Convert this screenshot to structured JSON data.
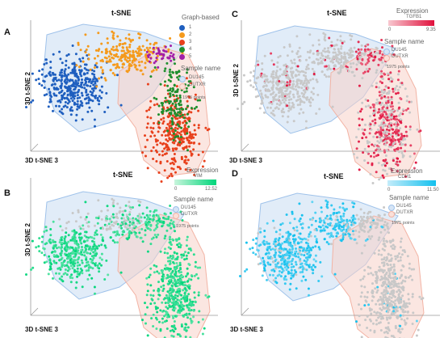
{
  "chart_data": [
    {
      "panel": "A",
      "type": "scatter",
      "title": "t-SNE",
      "xlabel": "3D t-SNE 3",
      "ylabel": "3D t-SNE 2",
      "color_by": "Graph-based",
      "legend": [
        {
          "label": "1",
          "color": "#1f5fbf"
        },
        {
          "label": "2",
          "color": "#f59a1c"
        },
        {
          "label": "3",
          "color": "#e8401c"
        },
        {
          "label": "4",
          "color": "#1f8f2e"
        },
        {
          "label": "5",
          "color": "#a21ea8"
        }
      ],
      "sample_name_title": "Sample name",
      "samples": [
        {
          "label": "DU145",
          "color": "#9fc2ea"
        },
        {
          "label": "DUTXR",
          "color": "#f2b3a4"
        }
      ],
      "points_label": "1975 points"
    },
    {
      "panel": "B",
      "type": "scatter",
      "title": "t-SNE",
      "xlabel": "3D t-SNE 3",
      "ylabel": "3D t-SNE 2",
      "expression_title": "Expression",
      "gene": "VIM",
      "range": {
        "min_label": "0",
        "max_label": "12.52",
        "min": 0,
        "max": 12.52
      },
      "colors": {
        "low": "#c8f5dc",
        "high": "#00d57a"
      },
      "sample_name_title": "Sample name",
      "samples": [
        {
          "label": "DU145",
          "color": "#9fc2ea"
        },
        {
          "label": "DUTXR",
          "color": "#f2b3a4"
        }
      ],
      "points_label": "1975 points"
    },
    {
      "panel": "C",
      "type": "scatter",
      "title": "t-SNE",
      "xlabel": "3D t-SNE 3",
      "ylabel": "3D t-SNE 2",
      "expression_title": "Expression",
      "gene": "TGFB1",
      "range": {
        "min_label": "0",
        "max_label": "9.35",
        "min": 0,
        "max": 9.35
      },
      "colors": {
        "low": "#f8c8d0",
        "high": "#e0103c"
      },
      "sample_name_title": "Sample name",
      "samples": [
        {
          "label": "DU145",
          "color": "#9fc2ea"
        },
        {
          "label": "DUTXR",
          "color": "#f2b3a4"
        }
      ],
      "points_label": "1975 points"
    },
    {
      "panel": "D",
      "type": "scatter",
      "title": "t-SNE",
      "xlabel": "3D t-SNE 3",
      "ylabel": "",
      "expression_title": "Expression",
      "gene": "CDH1",
      "range": {
        "min_label": "0",
        "max_label": "11.50",
        "min": 0,
        "max": 11.5
      },
      "colors": {
        "low": "#c4ecfa",
        "high": "#12c0ee"
      },
      "sample_name_title": "Sample name",
      "samples": [
        {
          "label": "DU145",
          "color": "#9fc2ea"
        },
        {
          "label": "DUTXR",
          "color": "#f2b3a4"
        }
      ],
      "points_label": "1975 points"
    }
  ]
}
